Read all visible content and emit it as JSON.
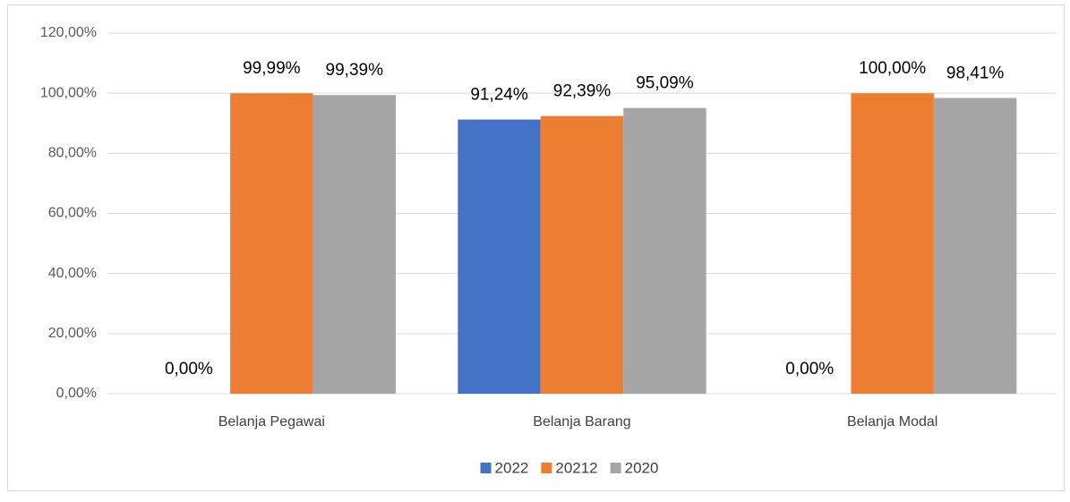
{
  "chart_data": {
    "type": "bar",
    "categories": [
      "Belanja Pegawai",
      "Belanja Barang",
      "Belanja Modal"
    ],
    "series": [
      {
        "name": "2022",
        "color": "#4472c4",
        "values": [
          0,
          91.24,
          0
        ],
        "value_labels": [
          "0,00%",
          "91,24%",
          "0,00%"
        ]
      },
      {
        "name": "20212",
        "color": "#ed7d31",
        "values": [
          99.99,
          92.39,
          100
        ],
        "value_labels": [
          "99,99%",
          "92,39%",
          "100,00%"
        ]
      },
      {
        "name": "2020",
        "color": "#a5a5a5",
        "values": [
          99.39,
          95.09,
          98.41
        ],
        "value_labels": [
          "99,39%",
          "95,09%",
          "98,41%"
        ]
      }
    ],
    "ylim": [
      0,
      120
    ],
    "yticks": [
      {
        "value": 0,
        "label": "0,00%"
      },
      {
        "value": 20,
        "label": "20,00%"
      },
      {
        "value": 40,
        "label": "40,00%"
      },
      {
        "value": 60,
        "label": "60,00%"
      },
      {
        "value": 80,
        "label": "80,00%"
      },
      {
        "value": 100,
        "label": "100,00%"
      },
      {
        "value": 120,
        "label": "120,00%"
      }
    ],
    "grid": true,
    "legend": "bottom"
  }
}
